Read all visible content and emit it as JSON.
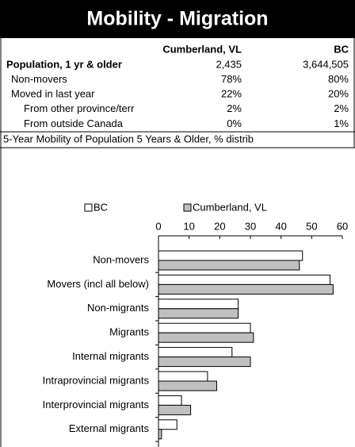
{
  "header": {
    "title": "Mobility - Migration"
  },
  "table": {
    "columns": [
      "Cumberland, VL",
      "BC"
    ],
    "rows": [
      {
        "label": "Population, 1 yr & older",
        "values": [
          "2,435",
          "3,644,505"
        ]
      },
      {
        "label": "Non-movers",
        "values": [
          "78%",
          "80%"
        ]
      },
      {
        "label": "Moved in last year",
        "values": [
          "22%",
          "20%"
        ]
      },
      {
        "label": "From other province/terr",
        "values": [
          "2%",
          "2%"
        ]
      },
      {
        "label": "From outside Canada",
        "values": [
          "0%",
          "1%"
        ]
      }
    ]
  },
  "chart_data": {
    "type": "bar",
    "orientation": "horizontal",
    "title": "5-Year Mobility of Population 5 Years & Older, % distrib",
    "categories": [
      "Non-movers",
      "Movers (incl all below)",
      "Non-migrants",
      "Migrants",
      "Internal migrants",
      "Intraprovincial migrants",
      "Interprovincial migrants",
      "External migrants"
    ],
    "series": [
      {
        "name": "BC",
        "color": "#ffffff",
        "values": [
          47,
          56,
          26,
          30,
          24,
          16,
          7.5,
          6
        ]
      },
      {
        "name": "Cumberland, VL",
        "color": "#c0c0c0",
        "values": [
          46,
          57,
          26,
          31,
          30,
          19,
          10.5,
          1
        ]
      }
    ],
    "xlim": [
      0,
      60
    ],
    "xticks": [
      0,
      10,
      20,
      30,
      40,
      50,
      60
    ]
  }
}
